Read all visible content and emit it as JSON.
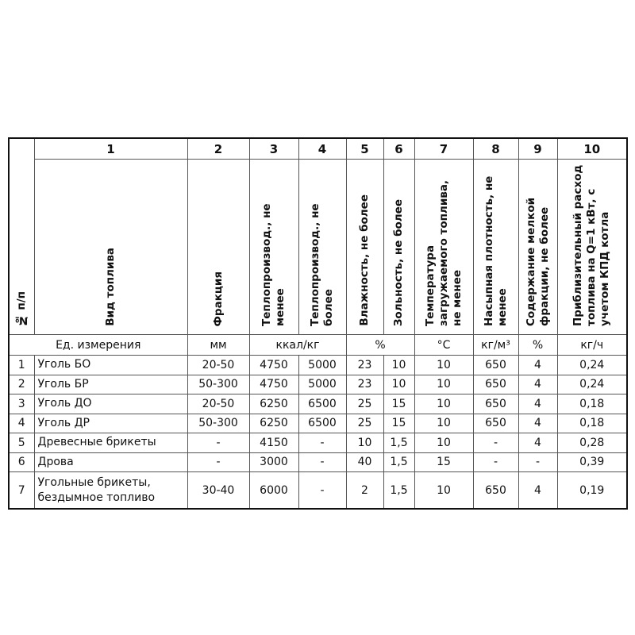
{
  "header": {
    "numbers": [
      "1",
      "2",
      "3",
      "4",
      "5",
      "6",
      "7",
      "8",
      "9",
      "10"
    ],
    "row_num_label": "№ п/п",
    "columns": [
      "Вид топлива",
      "Фракция",
      "Теплопроизвод., не менее",
      "Теплопроизвод., не более",
      "Влажность, не более",
      "Зольность, не более",
      "Температура загружаемого топлива, не менее",
      "Насыпная плотность, не менее",
      "Содержание мелкой фракции, не более",
      "Приблизительный расход топлива на Q=1 кВт, с учетом КПД котла"
    ]
  },
  "units": {
    "label": "Ед. измерения",
    "fraction": "мм",
    "heat": "ккал/кг",
    "percent": "%",
    "temperature": "°С",
    "density": "кг/м³",
    "fines": "%",
    "consumption": "кг/ч"
  },
  "rows": [
    [
      "1",
      "Уголь БО",
      "20-50",
      "4750",
      "5000",
      "23",
      "10",
      "10",
      "650",
      "4",
      "0,24"
    ],
    [
      "2",
      "Уголь БР",
      "50-300",
      "4750",
      "5000",
      "23",
      "10",
      "10",
      "650",
      "4",
      "0,24"
    ],
    [
      "3",
      "Уголь ДО",
      "20-50",
      "6250",
      "6500",
      "25",
      "15",
      "10",
      "650",
      "4",
      "0,18"
    ],
    [
      "4",
      "Уголь ДР",
      "50-300",
      "6250",
      "6500",
      "25",
      "15",
      "10",
      "650",
      "4",
      "0,18"
    ],
    [
      "5",
      "Древесные брикеты",
      "-",
      "4150",
      "-",
      "10",
      "1,5",
      "10",
      "-",
      "4",
      "0,28"
    ],
    [
      "6",
      "Дрова",
      "-",
      "3000",
      "-",
      "40",
      "1,5",
      "15",
      "-",
      "-",
      "0,39"
    ],
    [
      "7",
      "Угольные брикеты, бездымное топливо",
      "30-40",
      "6000",
      "-",
      "2",
      "1,5",
      "10",
      "650",
      "4",
      "0,19"
    ]
  ]
}
